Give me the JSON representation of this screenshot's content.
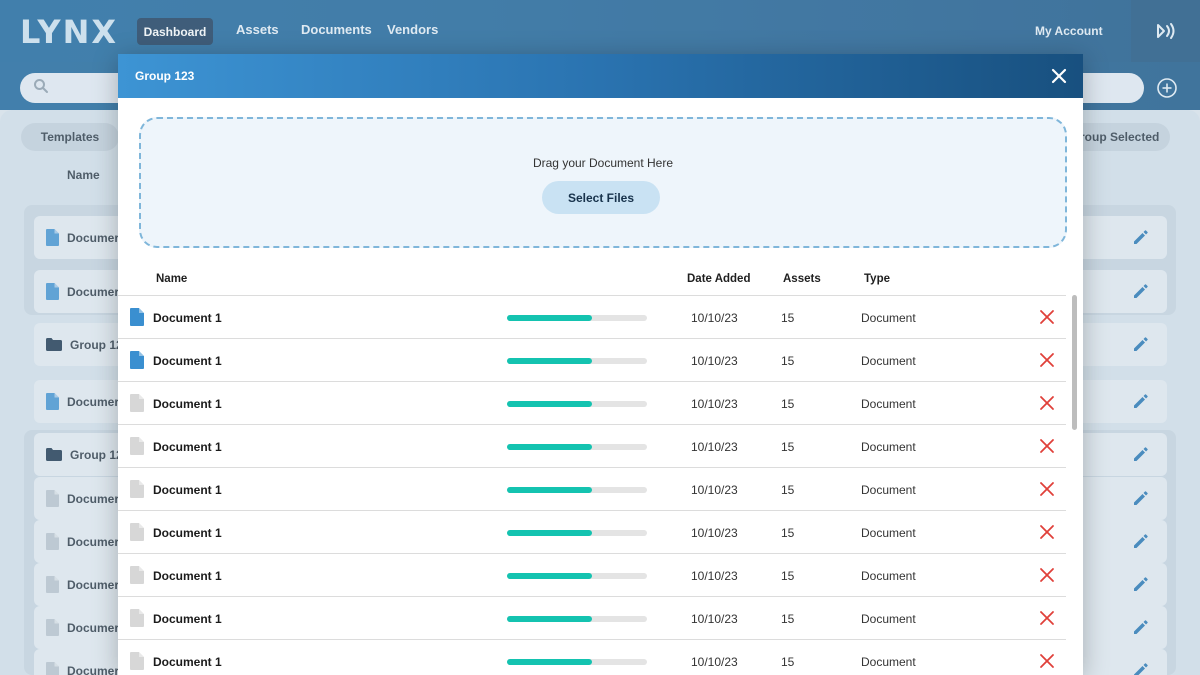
{
  "app": {
    "logo": "LYNX"
  },
  "nav": {
    "active": "Dashboard",
    "items": [
      "Assets",
      "Documents",
      "Vendors"
    ],
    "account": "My Account"
  },
  "background": {
    "templates_pill": "Templates",
    "group_selected_pill": "roup Selected",
    "name_col": "Name",
    "rows": [
      {
        "label": "Documer",
        "icon": "document-icon"
      },
      {
        "label": "Documer",
        "icon": "document-icon"
      },
      {
        "label": "Group 12",
        "icon": "folder-icon"
      },
      {
        "label": "Documer",
        "icon": "document-icon"
      },
      {
        "label": "Group 12",
        "icon": "folder-icon"
      },
      {
        "label": "Documer",
        "icon": "document-icon"
      },
      {
        "label": "Documer",
        "icon": "document-icon"
      },
      {
        "label": "Documer",
        "icon": "document-icon"
      },
      {
        "label": "Documer",
        "icon": "document-icon"
      },
      {
        "label": "Documer",
        "icon": "document-icon"
      }
    ]
  },
  "modal": {
    "title": "Group 123",
    "dropzone_text": "Drag your Document Here",
    "select_button": "Select Files",
    "columns": {
      "name": "Name",
      "date": "Date Added",
      "assets": "Assets",
      "type": "Type"
    },
    "rows": [
      {
        "name": "Document 1",
        "progress": 0.61,
        "date": "10/10/23",
        "assets": "15",
        "type": "Document",
        "icon_color": "#3a8fd0"
      },
      {
        "name": "Document 1",
        "progress": 0.61,
        "date": "10/10/23",
        "assets": "15",
        "type": "Document",
        "icon_color": "#3a8fd0"
      },
      {
        "name": "Document 1",
        "progress": 0.61,
        "date": "10/10/23",
        "assets": "15",
        "type": "Document",
        "icon_color": "#d7d7d7"
      },
      {
        "name": "Document 1",
        "progress": 0.61,
        "date": "10/10/23",
        "assets": "15",
        "type": "Document",
        "icon_color": "#d7d7d7"
      },
      {
        "name": "Document 1",
        "progress": 0.61,
        "date": "10/10/23",
        "assets": "15",
        "type": "Document",
        "icon_color": "#d7d7d7"
      },
      {
        "name": "Document 1",
        "progress": 0.61,
        "date": "10/10/23",
        "assets": "15",
        "type": "Document",
        "icon_color": "#d7d7d7"
      },
      {
        "name": "Document 1",
        "progress": 0.61,
        "date": "10/10/23",
        "assets": "15",
        "type": "Document",
        "icon_color": "#d7d7d7"
      },
      {
        "name": "Document 1",
        "progress": 0.61,
        "date": "10/10/23",
        "assets": "15",
        "type": "Document",
        "icon_color": "#d7d7d7"
      },
      {
        "name": "Document 1",
        "progress": 0.61,
        "date": "10/10/23",
        "assets": "15",
        "type": "Document",
        "icon_color": "#d7d7d7"
      }
    ]
  },
  "colors": {
    "accent": "#14c3b0",
    "delete": "#e0403a",
    "brand": "#0d5e98"
  }
}
